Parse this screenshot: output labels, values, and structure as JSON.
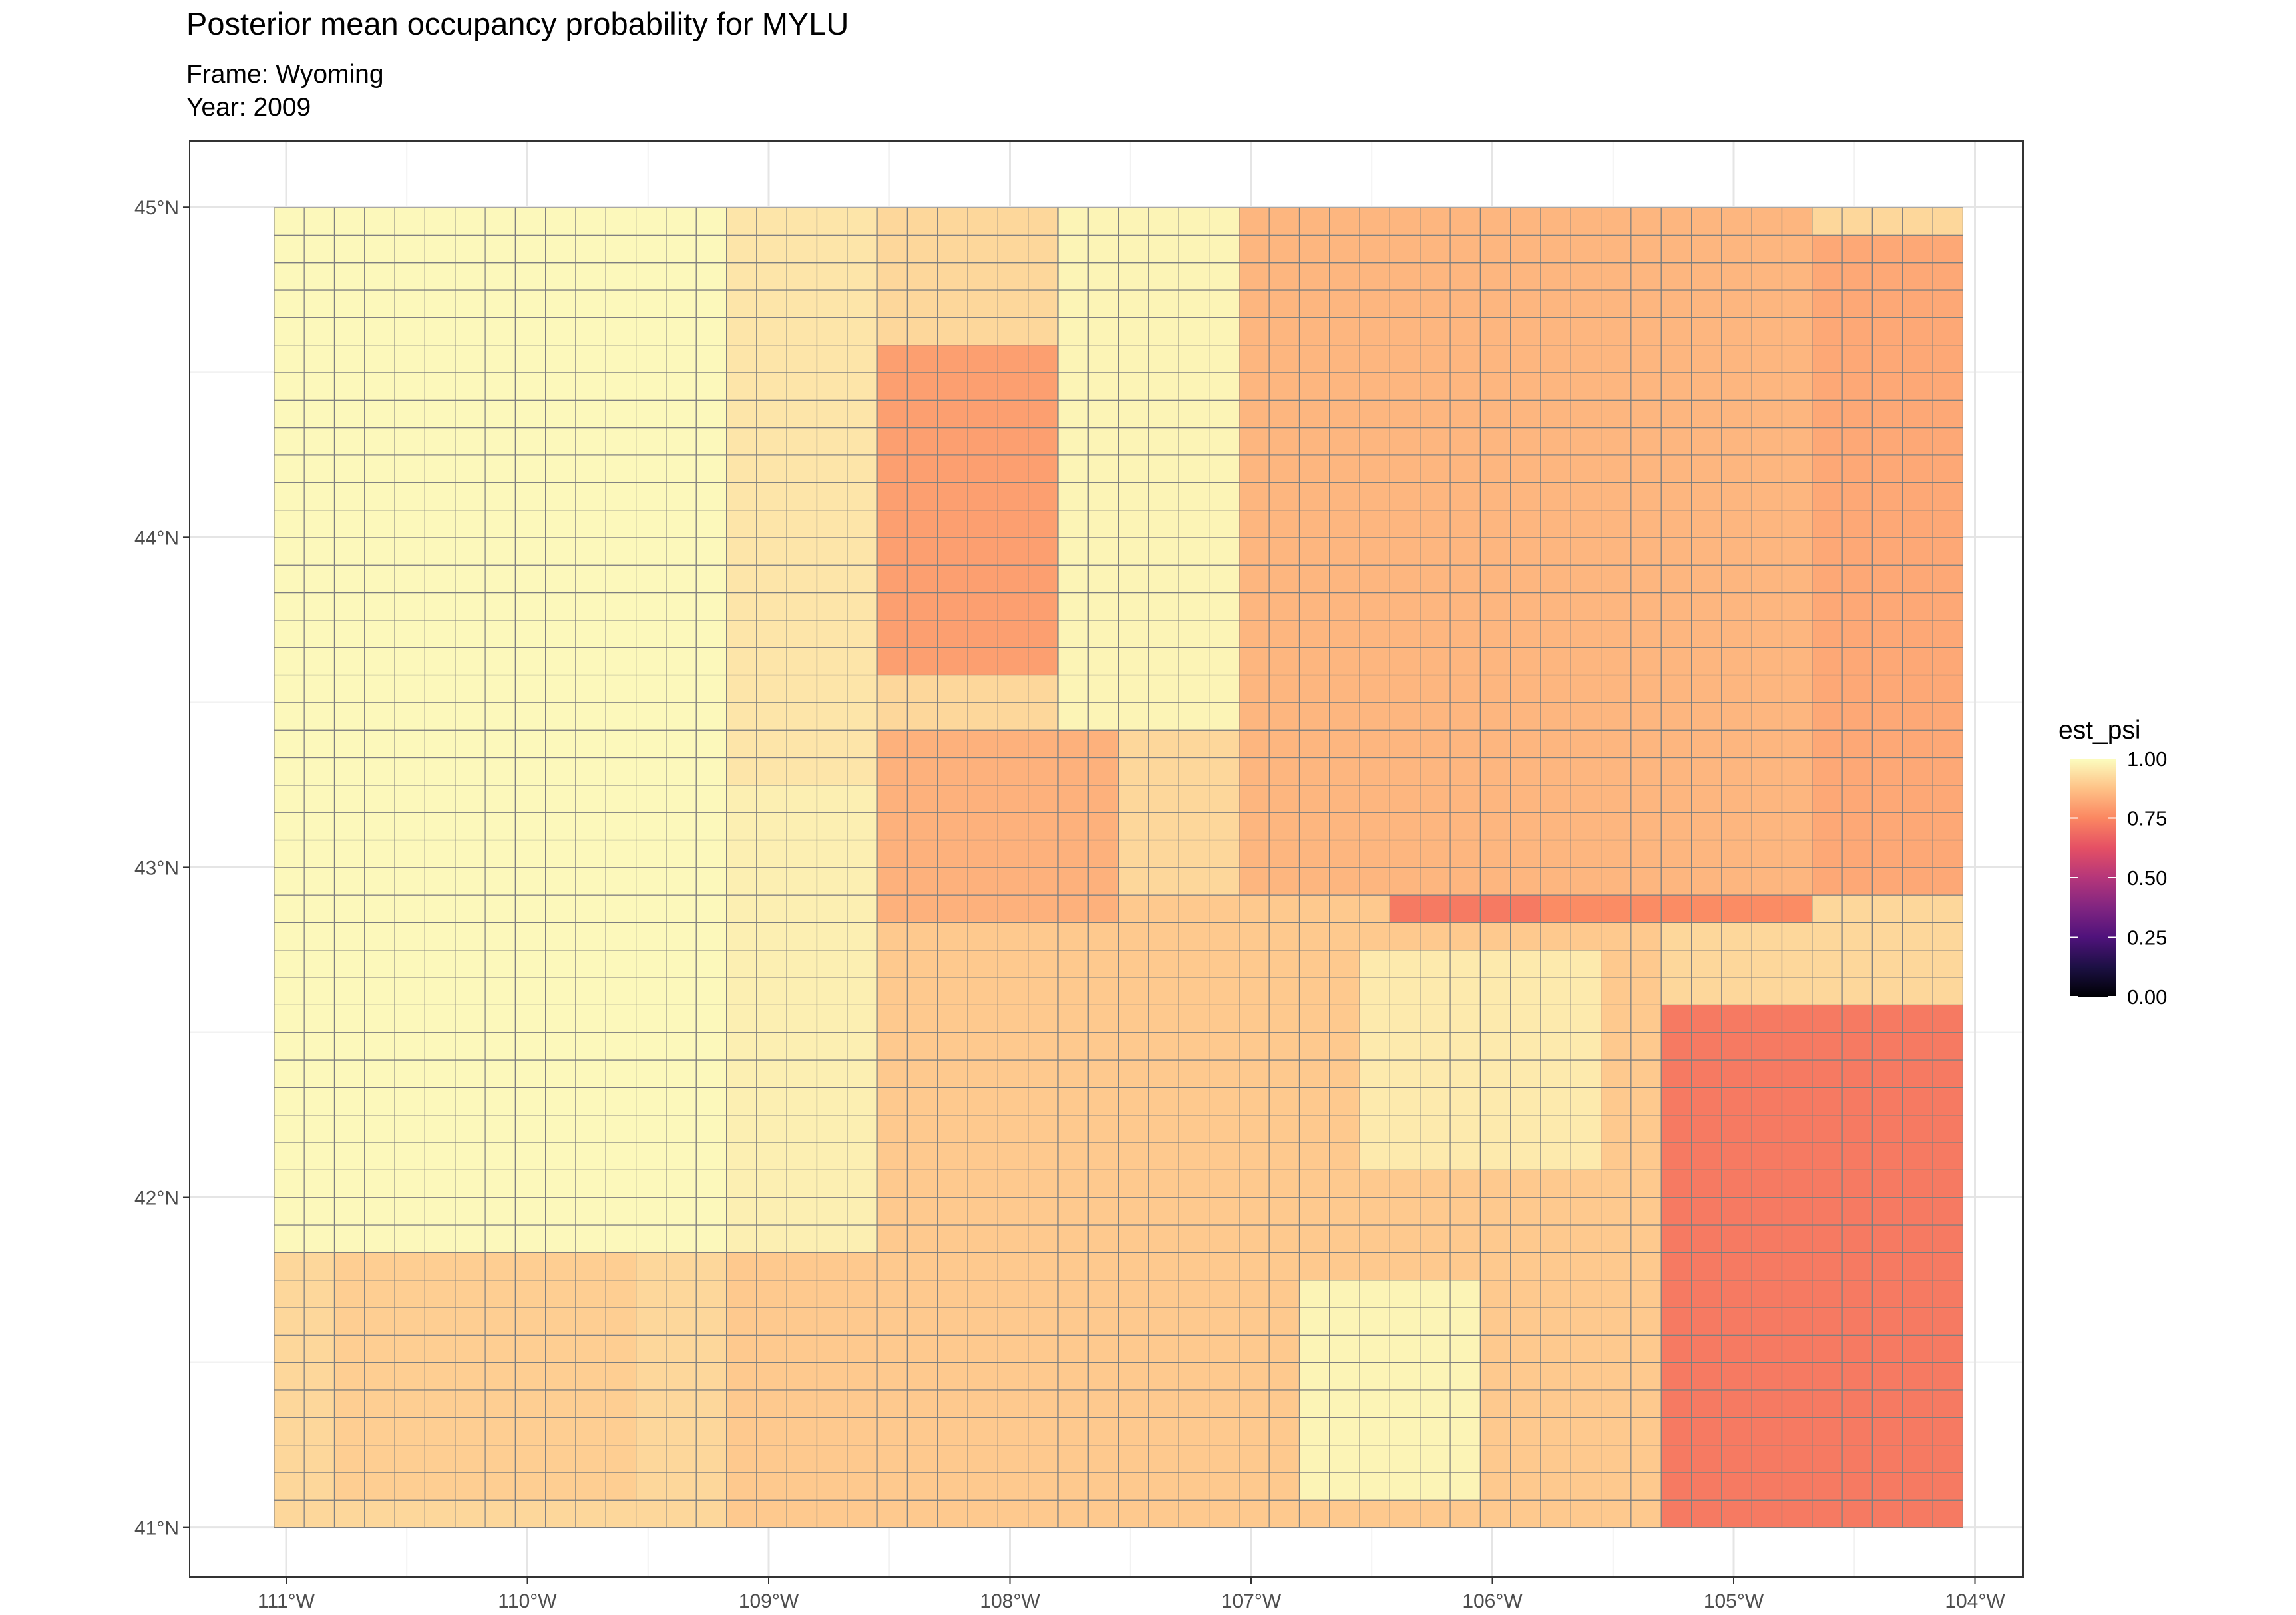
{
  "chart_data": {
    "type": "heatmap",
    "title": "Posterior mean occupancy probability for MYLU",
    "subtitle": [
      "Frame: Wyoming",
      "Year: 2009"
    ],
    "xlabel": "",
    "ylabel": "",
    "x_ticks": [
      "111°W",
      "110°W",
      "109°W",
      "108°W",
      "107°W",
      "106°W",
      "105°W",
      "104°W"
    ],
    "y_ticks": [
      "41°N",
      "42°N",
      "43°N",
      "44°N",
      "45°N"
    ],
    "xlim": [
      -111.4,
      -103.8
    ],
    "ylim": [
      40.85,
      45.2
    ],
    "grid": true,
    "legend": {
      "title": "est_psi",
      "placement": "right",
      "ticks": [
        "1.00",
        "0.75",
        "0.50",
        "0.25",
        "0.00"
      ],
      "range": [
        0,
        1
      ],
      "palette": "magma"
    },
    "grid_cell_deg": [
      0.125,
      0.0833
    ],
    "region_bounds": {
      "west": -111.05,
      "east": -104.05,
      "south": 41.0,
      "north": 45.0
    },
    "value_zones": [
      {
        "west": -111.05,
        "east": -109.15,
        "south": 41.85,
        "north": 45.0,
        "value": 0.99
      },
      {
        "west": -109.15,
        "east": -108.55,
        "south": 43.25,
        "north": 45.0,
        "value": 0.95
      },
      {
        "west": -109.15,
        "east": -108.55,
        "south": 41.85,
        "north": 43.25,
        "value": 0.97
      },
      {
        "west": -108.55,
        "east": -107.75,
        "south": 43.55,
        "north": 44.6,
        "value": 0.8
      },
      {
        "west": -108.4,
        "east": -107.85,
        "south": 43.7,
        "north": 44.15,
        "value": 0.74
      },
      {
        "west": -109.25,
        "east": -108.55,
        "south": 44.75,
        "north": 44.9,
        "value": 0.87
      },
      {
        "west": -108.8,
        "east": -107.6,
        "south": 42.85,
        "north": 43.45,
        "value": 0.84
      },
      {
        "west": -107.75,
        "east": -107.1,
        "south": 43.4,
        "north": 45.0,
        "value": 0.98
      },
      {
        "west": -107.1,
        "east": -104.7,
        "south": 42.95,
        "north": 45.0,
        "value": 0.85
      },
      {
        "west": -106.4,
        "east": -105.8,
        "south": 43.55,
        "north": 44.05,
        "value": 0.78
      },
      {
        "west": -105.75,
        "east": -104.7,
        "south": 42.85,
        "north": 43.4,
        "value": 0.76
      },
      {
        "west": -104.7,
        "east": -104.05,
        "south": 42.9,
        "north": 44.9,
        "value": 0.82
      },
      {
        "west": -104.8,
        "east": -104.4,
        "south": 44.3,
        "north": 44.65,
        "value": 0.94
      },
      {
        "west": -106.45,
        "east": -105.15,
        "south": 42.8,
        "north": 42.95,
        "value": 0.72
      },
      {
        "west": -106.5,
        "east": -105.6,
        "south": 42.1,
        "north": 42.75,
        "value": 0.96
      },
      {
        "west": -105.3,
        "east": -104.05,
        "south": 41.0,
        "north": 42.55,
        "value": 0.72
      },
      {
        "west": -104.75,
        "east": -104.15,
        "south": 41.5,
        "north": 42.05,
        "value": 0.66
      },
      {
        "west": -106.8,
        "east": -106.05,
        "south": 41.05,
        "north": 41.75,
        "value": 0.98
      },
      {
        "west": -110.8,
        "east": -109.5,
        "south": 41.05,
        "north": 41.85,
        "value": 0.9
      },
      {
        "west": -109.15,
        "east": -105.3,
        "south": 41.0,
        "north": 42.9,
        "value": 0.89
      }
    ]
  }
}
